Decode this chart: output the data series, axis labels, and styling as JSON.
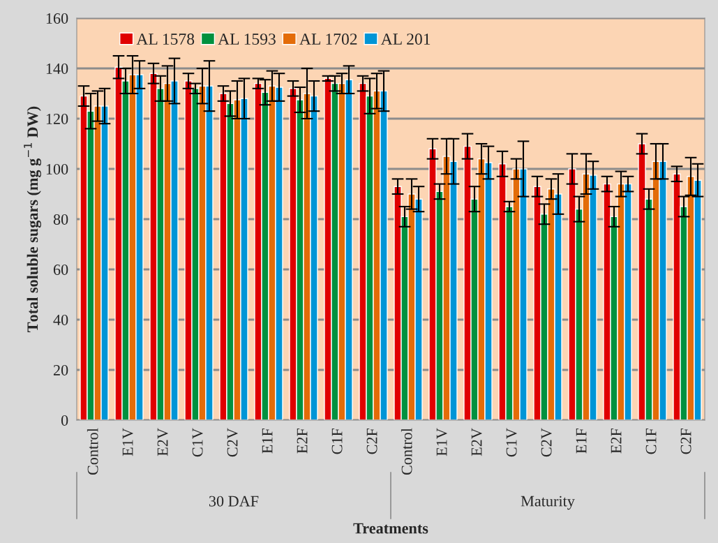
{
  "chart_data": {
    "type": "bar",
    "xlabel": "Treatments",
    "ylabel": "Total soluble sugars (mg g$^{−1}$ DW)",
    "categories": [
      "Control",
      "E1V",
      "E2V",
      "C1V",
      "C2V",
      "E1F",
      "E2F",
      "C1F",
      "C2F",
      "Control",
      "E1V",
      "E2V",
      "C1V",
      "C2V",
      "E1F",
      "E2F",
      "C1F",
      "C2F"
    ],
    "series": [
      {
        "name": "AL 1578",
        "color": "#e00000",
        "values": [
          129,
          140.5,
          138,
          135,
          130,
          134,
          132,
          136,
          134,
          93,
          108,
          109,
          102,
          93,
          100,
          94,
          110,
          98
        ],
        "errors": [
          4,
          4.5,
          4,
          3,
          3,
          2,
          3,
          1,
          3,
          3,
          4,
          5,
          5,
          4,
          6,
          3,
          4,
          3
        ]
      },
      {
        "name": "AL 1593",
        "color": "#00913f",
        "values": [
          123,
          135,
          132,
          132,
          126,
          130.5,
          127.5,
          134,
          129,
          81,
          91,
          88,
          85,
          82,
          84,
          81,
          88,
          85
        ],
        "errors": [
          7,
          5,
          5,
          2,
          5,
          5,
          5,
          3,
          7,
          4,
          3,
          5,
          2,
          4,
          5,
          4,
          4,
          4
        ]
      },
      {
        "name": "AL 1702",
        "color": "#e36c09",
        "values": [
          125,
          137.5,
          134,
          133,
          127.5,
          133,
          130,
          134,
          131,
          90,
          105,
          104,
          100,
          92,
          98,
          94,
          103,
          97
        ],
        "errors": [
          6,
          7.5,
          7,
          7,
          7.5,
          6,
          10,
          4,
          7,
          6,
          7,
          6,
          4,
          4,
          8,
          5,
          7,
          7.5
        ]
      },
      {
        "name": "AL 201",
        "color": "#0095d6",
        "values": [
          125,
          137.5,
          135,
          133,
          128,
          132.5,
          129,
          135.5,
          131,
          88,
          103,
          102.5,
          100,
          90,
          97.5,
          94,
          103,
          95.5
        ],
        "errors": [
          7,
          5.5,
          9,
          10,
          8,
          5.5,
          6,
          5.5,
          8,
          5,
          9,
          6.5,
          11,
          8,
          5.5,
          3,
          7,
          6.5
        ]
      }
    ],
    "annotations": [
      "30 DAF",
      "Maturity"
    ],
    "ylim": [
      0,
      160
    ],
    "yticks": [
      0,
      20,
      40,
      60,
      80,
      100,
      120,
      140,
      160
    ],
    "grid": "y",
    "legend": "top left"
  }
}
